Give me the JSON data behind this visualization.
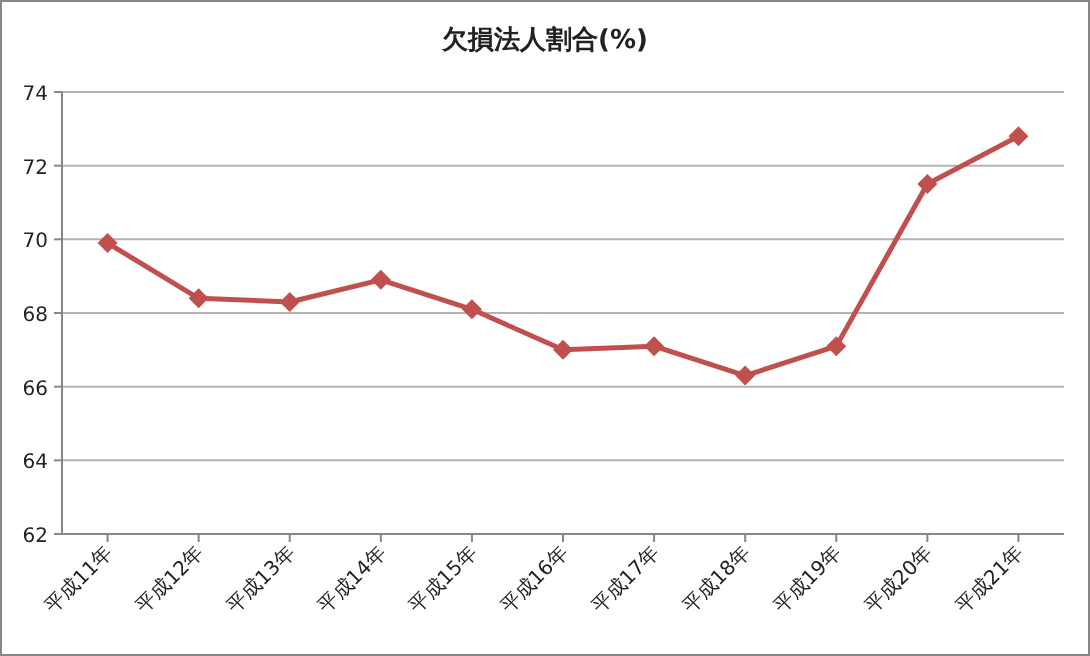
{
  "chart_data": {
    "type": "line",
    "title": "欠損法人割合(%)",
    "categories": [
      "平成11年",
      "平成12年",
      "平成13年",
      "平成14年",
      "平成15年",
      "平成16年",
      "平成17年",
      "平成18年",
      "平成19年",
      "平成20年",
      "平成21年"
    ],
    "values": [
      69.9,
      68.4,
      68.3,
      68.9,
      68.1,
      67.0,
      67.1,
      66.3,
      67.1,
      71.5,
      72.8
    ],
    "color": "#c0504d",
    "marker": "diamond",
    "line_style": "solid",
    "ylim": [
      62,
      74
    ],
    "yticks": [
      62,
      64,
      66,
      68,
      70,
      72,
      74
    ],
    "grid": "y",
    "legend": false
  }
}
